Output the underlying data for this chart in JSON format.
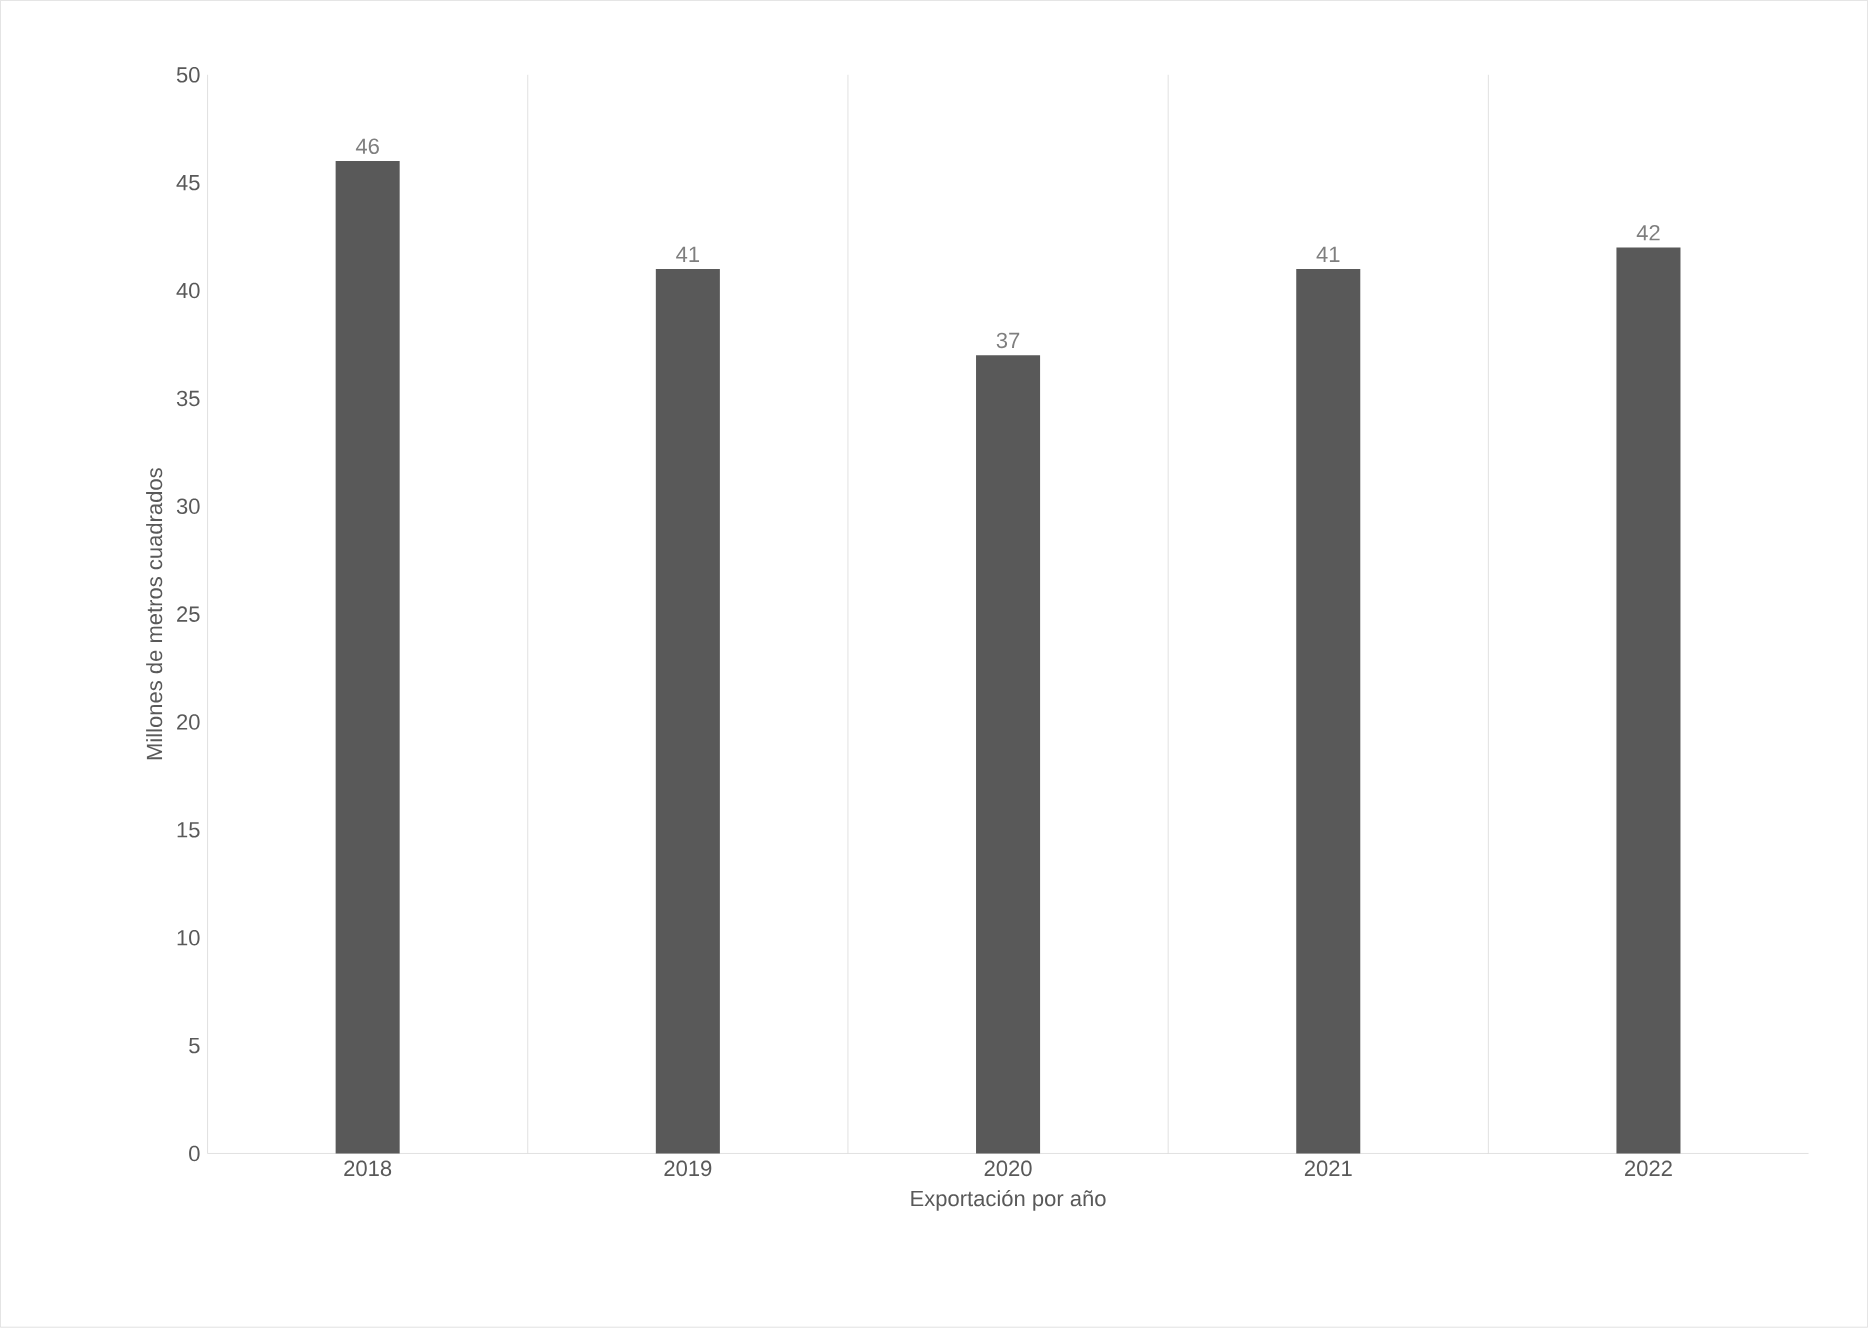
{
  "chart_data": {
    "type": "bar",
    "xlabel": "Exportación por año",
    "ylabel": "Millones de metros cuadrados",
    "categories": [
      "2018",
      "2019",
      "2020",
      "2021",
      "2022"
    ],
    "values": [
      46,
      41,
      37,
      41,
      42
    ],
    "color": "#595959",
    "ylim": [
      0,
      50
    ],
    "yticks": [
      0,
      5,
      10,
      15,
      20,
      25,
      30,
      35,
      40,
      45,
      50
    ],
    "grid": "x",
    "data_labels": true
  }
}
